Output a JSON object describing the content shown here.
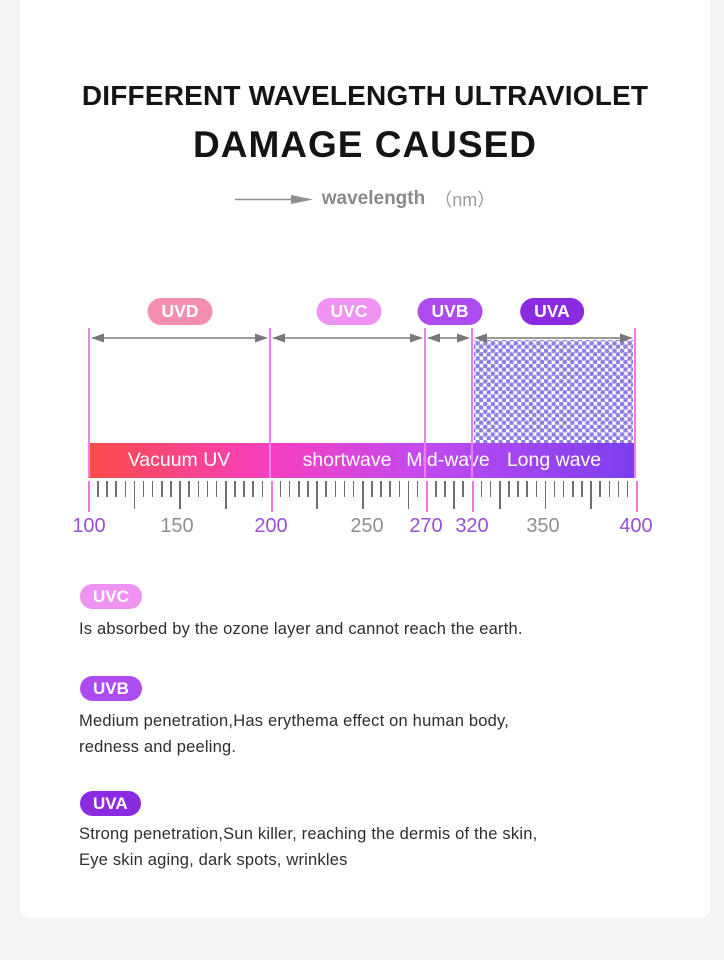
{
  "header": {
    "title_line1": "DIFFERENT WAVELENGTH ULTRAVIOLET",
    "title_line2": "DAMAGE CAUSED",
    "axis_label": "wavelength",
    "axis_unit": "（nm）"
  },
  "spectrum": {
    "unit": "nm",
    "axis_min": 100,
    "axis_max": 400,
    "bands": [
      {
        "badge": "UVD",
        "bar_label": "Vacuum UV",
        "range_start": 100,
        "range_end": 200,
        "badge_color": "#F58FB0"
      },
      {
        "badge": "UVC",
        "bar_label": "shortwave",
        "range_start": 200,
        "range_end": 270,
        "badge_color": "#EE93F2"
      },
      {
        "badge": "UVB",
        "bar_label": "Mid-wave",
        "range_start": 270,
        "range_end": 320,
        "badge_color": "#AC4BEE"
      },
      {
        "badge": "UVA",
        "bar_label": "Long wave",
        "range_start": 320,
        "range_end": 400,
        "badge_color": "#8A2BE2"
      }
    ],
    "axis_ticks": [
      {
        "value": "100",
        "highlight": true
      },
      {
        "value": "150",
        "highlight": false
      },
      {
        "value": "200",
        "highlight": true
      },
      {
        "value": "250",
        "highlight": false
      },
      {
        "value": "270",
        "highlight": true
      },
      {
        "value": "320",
        "highlight": true
      },
      {
        "value": "350",
        "highlight": false
      },
      {
        "value": "400",
        "highlight": true
      }
    ],
    "colors": {
      "bar_gradient": [
        "#F94B49",
        "#F73FC0",
        "#C04BF0",
        "#7C3EEF"
      ],
      "divider_line": "#F07CF0",
      "arrow": "#787878",
      "dot_fill": "#8F7FE5",
      "tick_normal": "#6F6F6F",
      "tick_highlight": "#F274E8",
      "number_highlight": "#9A4FD4",
      "number_normal": "#8F8F8F"
    }
  },
  "legend": [
    {
      "badge": "UVC",
      "color": "#EE93F2",
      "lines": [
        "Is absorbed by the ozone layer and cannot reach the earth."
      ]
    },
    {
      "badge": "UVB",
      "color": "#AC4BEE",
      "lines": [
        "Medium penetration,Has erythema effect on human body,",
        "redness and peeling."
      ]
    },
    {
      "badge": "UVA",
      "color": "#8A2BE2",
      "lines": [
        "Strong penetration,Sun killer, reaching the dermis of the skin,",
        "Eye skin aging, dark spots, wrinkles"
      ]
    }
  ]
}
